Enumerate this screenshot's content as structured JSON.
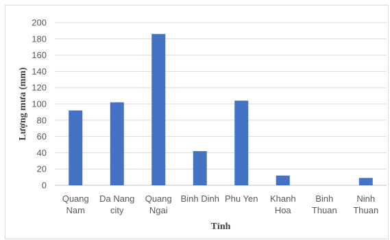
{
  "chart_data": {
    "type": "bar",
    "title": "",
    "xlabel": "Tỉnh",
    "ylabel": "Lượng mưa (mm)",
    "ylim": [
      0,
      200
    ],
    "yticks": [
      0,
      20,
      40,
      60,
      80,
      100,
      120,
      140,
      160,
      180,
      200
    ],
    "grid": true,
    "legend": "none",
    "bar_color": "#4472c4",
    "categories": [
      [
        "Quang",
        "Nam"
      ],
      [
        "Da Nang",
        "city"
      ],
      [
        "Quang",
        "Ngai"
      ],
      [
        "Binh Dinh"
      ],
      [
        "Phu Yen"
      ],
      [
        "Khanh",
        "Hoa"
      ],
      [
        "Binh",
        "Thuan"
      ],
      [
        "Ninh",
        "Thuan"
      ]
    ],
    "values": [
      92,
      102,
      186,
      42,
      104,
      12,
      0,
      9
    ]
  }
}
